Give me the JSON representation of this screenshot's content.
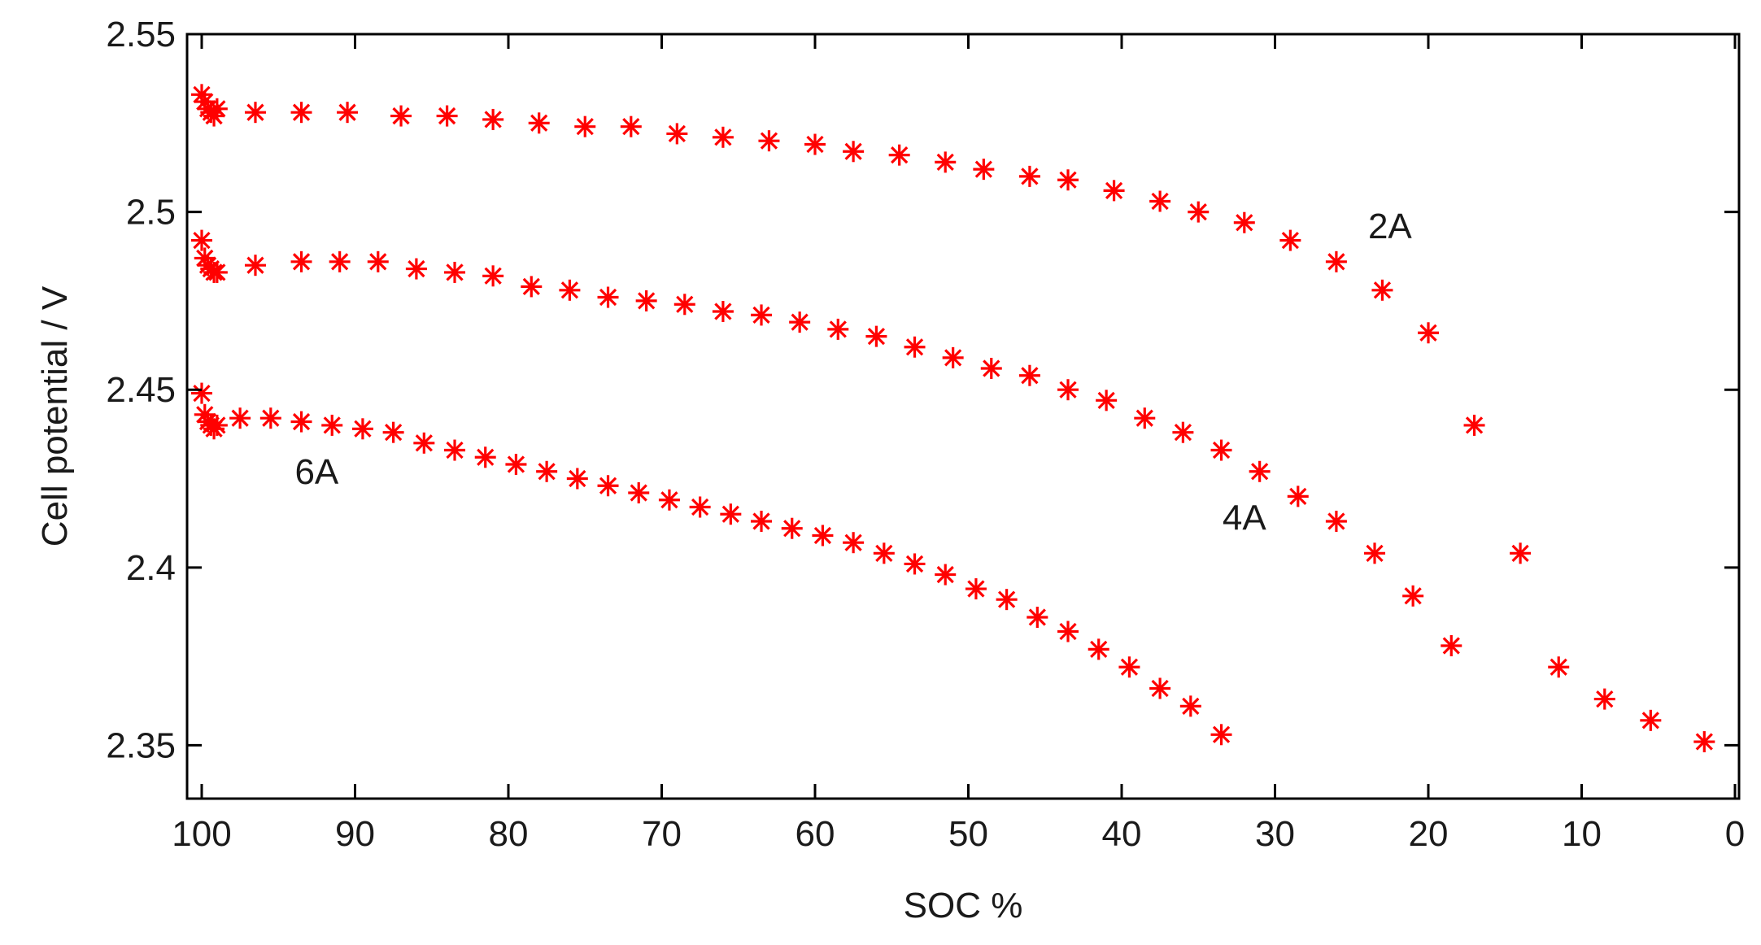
{
  "chart_data": {
    "type": "scatter",
    "title": "",
    "xlabel": "SOC  %",
    "ylabel": "Cell potential / V",
    "xlim": [
      100,
      0
    ],
    "ylim": [
      2.335,
      2.55
    ],
    "xticks": [
      100,
      90,
      80,
      70,
      60,
      50,
      40,
      30,
      20,
      10,
      0
    ],
    "xtick_labels": [
      "100",
      "90",
      "80",
      "70",
      "60",
      "50",
      "40",
      "30",
      "20",
      "10",
      "0"
    ],
    "yticks": [
      2.35,
      2.4,
      2.45,
      2.5,
      2.55
    ],
    "ytick_labels": [
      "2.35",
      "2.4",
      "2.45",
      "2.5",
      "2.55"
    ],
    "grid": false,
    "legend": "none",
    "marker_color": "#ff0000",
    "series": [
      {
        "name": "2A",
        "x": [
          100,
          99.8,
          99.6,
          99.4,
          99.2,
          99,
          96.5,
          93.5,
          90.5,
          87,
          84,
          81,
          78,
          75,
          72,
          69,
          66,
          63,
          60,
          57.5,
          54.5,
          51.5,
          49,
          46,
          43.5,
          40.5,
          37.5,
          35,
          32,
          29,
          26,
          23,
          20,
          17,
          14,
          11.5,
          8.5,
          5.5,
          2
        ],
        "y": [
          2.533,
          2.531,
          2.529,
          2.528,
          2.527,
          2.529,
          2.528,
          2.528,
          2.528,
          2.527,
          2.527,
          2.526,
          2.525,
          2.524,
          2.524,
          2.522,
          2.521,
          2.52,
          2.519,
          2.517,
          2.516,
          2.514,
          2.512,
          2.51,
          2.509,
          2.506,
          2.503,
          2.5,
          2.497,
          2.492,
          2.486,
          2.478,
          2.466,
          2.44,
          2.404,
          2.372,
          2.363,
          2.357,
          2.351
        ]
      },
      {
        "name": "4A",
        "x": [
          100,
          99.8,
          99.6,
          99.4,
          99.2,
          99,
          96.5,
          93.5,
          91,
          88.5,
          86,
          83.5,
          81,
          78.5,
          76,
          73.5,
          71,
          68.5,
          66,
          63.5,
          61,
          58.5,
          56,
          53.5,
          51,
          48.5,
          46,
          43.5,
          41,
          38.5,
          36,
          33.5,
          31,
          28.5,
          26,
          23.5,
          21,
          18.5
        ],
        "y": [
          2.492,
          2.487,
          2.485,
          2.484,
          2.483,
          2.483,
          2.485,
          2.486,
          2.486,
          2.486,
          2.484,
          2.483,
          2.482,
          2.479,
          2.478,
          2.476,
          2.475,
          2.474,
          2.472,
          2.471,
          2.469,
          2.467,
          2.465,
          2.462,
          2.459,
          2.456,
          2.454,
          2.45,
          2.447,
          2.442,
          2.438,
          2.433,
          2.427,
          2.42,
          2.413,
          2.404,
          2.392,
          2.378
        ]
      },
      {
        "name": "6A",
        "x": [
          100,
          99.8,
          99.6,
          99.4,
          99.2,
          99,
          97.5,
          95.5,
          93.5,
          91.5,
          89.5,
          87.5,
          85.5,
          83.5,
          81.5,
          79.5,
          77.5,
          75.5,
          73.5,
          71.5,
          69.5,
          67.5,
          65.5,
          63.5,
          61.5,
          59.5,
          57.5,
          55.5,
          53.5,
          51.5,
          49.5,
          47.5,
          45.5,
          43.5,
          41.5,
          39.5,
          37.5,
          35.5,
          33.5
        ],
        "y": [
          2.449,
          2.443,
          2.441,
          2.44,
          2.439,
          2.44,
          2.442,
          2.442,
          2.441,
          2.44,
          2.439,
          2.438,
          2.435,
          2.433,
          2.431,
          2.429,
          2.427,
          2.425,
          2.423,
          2.421,
          2.419,
          2.417,
          2.415,
          2.413,
          2.411,
          2.409,
          2.407,
          2.404,
          2.401,
          2.398,
          2.394,
          2.391,
          2.386,
          2.382,
          2.377,
          2.372,
          2.366,
          2.361,
          2.353
        ]
      }
    ],
    "annotations": [
      {
        "text": "2A",
        "x": 22.5,
        "y": 2.496
      },
      {
        "text": "4A",
        "x": 32,
        "y": 2.414
      },
      {
        "text": "6A",
        "x": 92.5,
        "y": 2.427
      }
    ]
  }
}
